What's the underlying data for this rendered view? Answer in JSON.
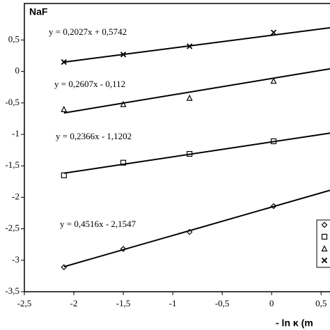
{
  "chart_data": {
    "type": "scatter",
    "title": "NaF",
    "x_label": "- ln κ (m",
    "x": [
      -2.1,
      -1.5,
      -0.83,
      0.02
    ],
    "xlim": [
      -2.5,
      0.59
    ],
    "ylim": [
      -3.5,
      1.08
    ],
    "xticks": [
      {
        "value": -2.5,
        "label": "-2,5"
      },
      -2,
      {
        "value": -1.5,
        "label": "-1,5"
      },
      -1,
      {
        "value": -0.5,
        "label": "-0,5"
      },
      0,
      {
        "value": 0.5,
        "label": "0,5"
      }
    ],
    "yticks": [
      {
        "value": -3.5,
        "label": "-3,5"
      },
      -3,
      {
        "value": -2.5,
        "label": "-2,5"
      },
      -2,
      {
        "value": -1.5,
        "label": "-1,5"
      },
      -1,
      {
        "value": -0.5,
        "label": "-0,5"
      },
      0,
      {
        "value": 0.5,
        "label": "0,5"
      }
    ],
    "series": [
      {
        "marker": "x",
        "color": "#000000",
        "values": [
          0.15,
          0.27,
          0.4,
          0.62
        ],
        "trend": {
          "slope": 0.2027,
          "intercept": 0.5742,
          "label": "y = 0,2027x + 0,5742"
        }
      },
      {
        "marker": "triangle",
        "color": "#000000",
        "values": [
          -0.6,
          -0.52,
          -0.42,
          -0.15
        ],
        "trend": {
          "slope": 0.2607,
          "intercept": -0.112,
          "label": "y = 0,2607x - 0,112"
        }
      },
      {
        "marker": "square",
        "color": "#000000",
        "values": [
          -1.65,
          -1.45,
          -1.31,
          -1.11
        ],
        "trend": {
          "slope": 0.2366,
          "intercept": -1.1202,
          "label": "y = 0,2366x - 1,1202"
        }
      },
      {
        "marker": "diamond",
        "color": "#000000",
        "values": [
          -3.11,
          -2.82,
          -2.55,
          -2.14
        ],
        "trend": {
          "slope": 0.4516,
          "intercept": -2.1547,
          "label": "y = 0,4516x - 2,1547"
        }
      }
    ]
  }
}
